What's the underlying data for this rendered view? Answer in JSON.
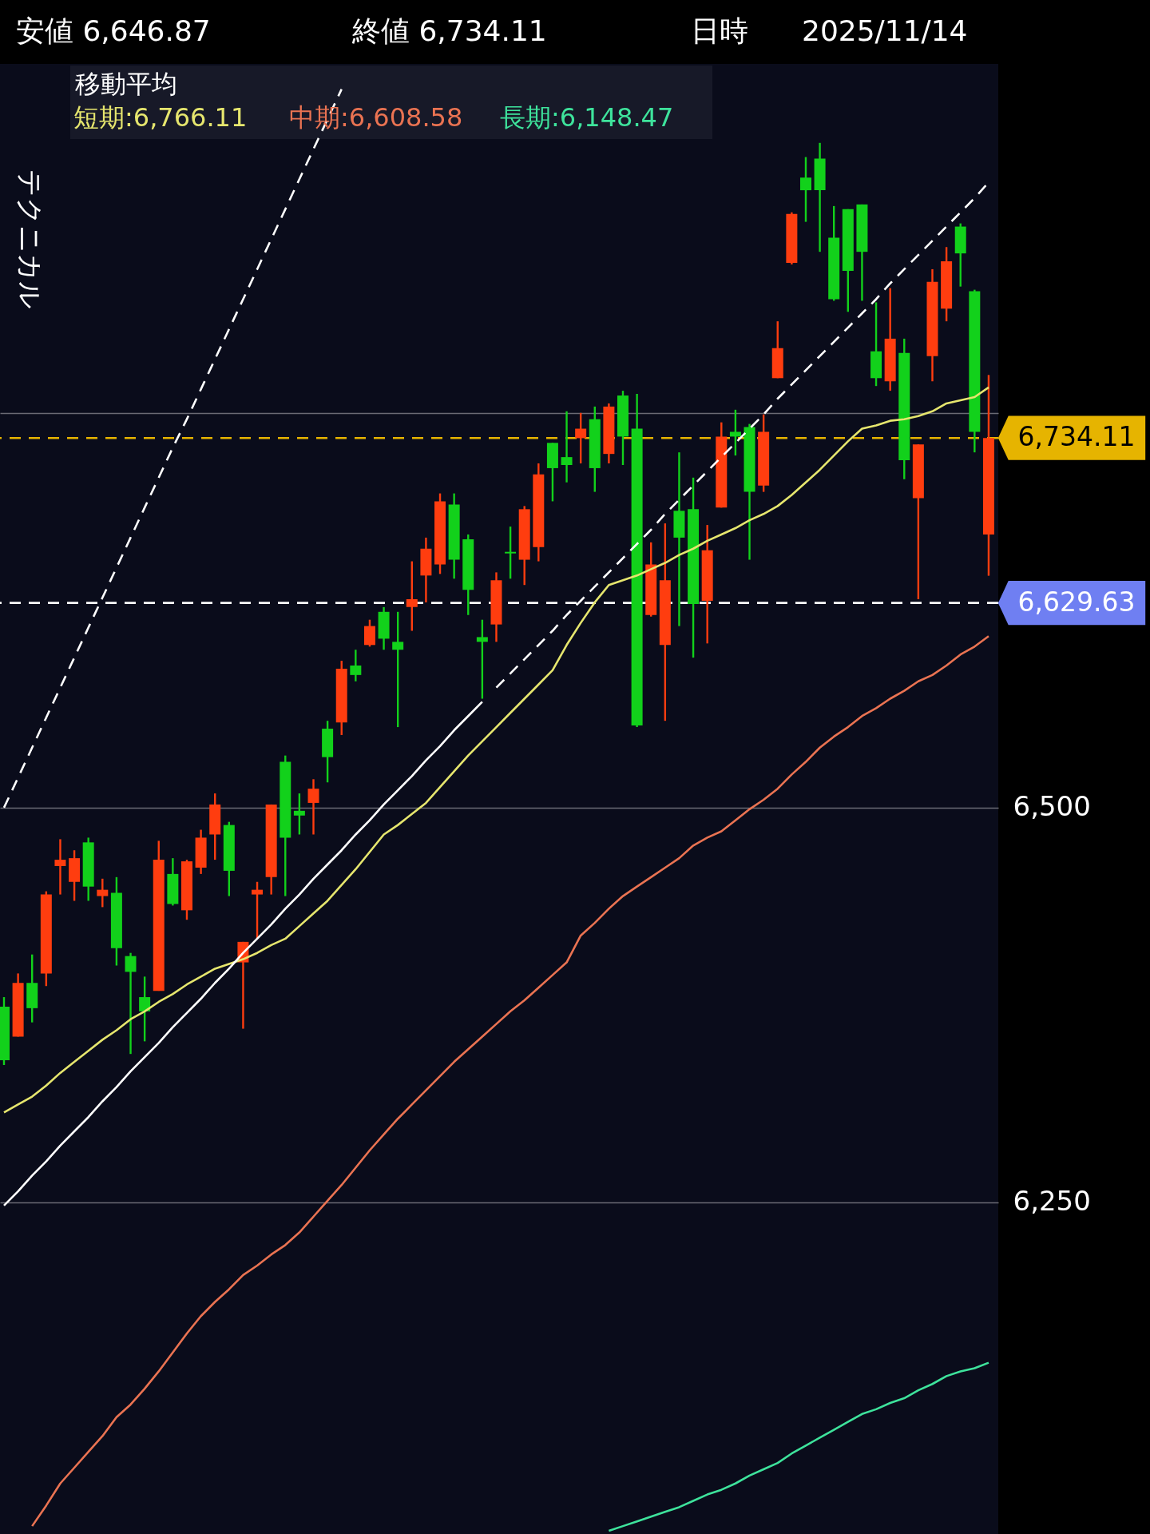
{
  "chart_data": {
    "type": "candlestick",
    "categories": [
      null,
      null,
      null,
      null,
      null,
      null,
      null,
      null,
      null,
      null,
      null,
      null,
      null,
      null,
      null,
      null,
      null,
      null,
      null,
      null,
      null,
      null,
      null,
      null,
      null,
      null,
      null,
      null,
      null,
      null,
      null,
      null,
      null,
      null,
      null,
      null,
      null,
      null,
      null,
      null,
      null,
      null,
      null,
      null,
      null,
      null,
      null,
      null,
      null,
      null,
      null,
      null,
      null,
      null,
      null,
      null,
      null,
      null,
      null,
      null,
      null,
      null,
      null,
      null,
      null,
      null,
      null,
      null,
      null,
      null,
      null
    ],
    "ohlc": [
      [
        6374,
        6380,
        6337,
        6340
      ],
      [
        6355,
        6395,
        6355,
        6389
      ],
      [
        6389,
        6407,
        6364,
        6373
      ],
      [
        6395,
        6447,
        6387,
        6445
      ],
      [
        6463,
        6480,
        6445,
        6467
      ],
      [
        6453,
        6473,
        6441,
        6468
      ],
      [
        6478,
        6481,
        6441,
        6450
      ],
      [
        6444,
        6455,
        6437,
        6448
      ],
      [
        6446,
        6456,
        6400,
        6411
      ],
      [
        6406,
        6408,
        6344,
        6396
      ],
      [
        6380,
        6393,
        6352,
        6371
      ],
      [
        6384,
        6479,
        6384,
        6467
      ],
      [
        6458,
        6468,
        6438,
        6439
      ],
      [
        6435,
        6467,
        6429,
        6466
      ],
      [
        6462,
        6486,
        6458,
        6481
      ],
      [
        6483,
        6509,
        6467,
        6502
      ],
      [
        6489,
        6491,
        6444,
        6460
      ],
      [
        6402,
        6415,
        6360,
        6415
      ],
      [
        6445,
        6453,
        6417,
        6448
      ],
      [
        6456,
        6502,
        6445,
        6502
      ],
      [
        6529,
        6533,
        6444,
        6481
      ],
      [
        6498,
        6509,
        6483,
        6495
      ],
      [
        6503,
        6518,
        6483,
        6512
      ],
      [
        6550,
        6555,
        6516,
        6532
      ],
      [
        6554,
        6593,
        6546,
        6588
      ],
      [
        6590,
        6600,
        6580,
        6584
      ],
      [
        6603,
        6619,
        6602,
        6615
      ],
      [
        6624,
        6627,
        6600,
        6607
      ],
      [
        6605,
        6624,
        6551,
        6600
      ],
      [
        6627,
        6656,
        6612,
        6632
      ],
      [
        6647,
        6671,
        6630,
        6664
      ],
      [
        6654,
        6699,
        6648,
        6694
      ],
      [
        6692,
        6699,
        6645,
        6657
      ],
      [
        6670,
        6673,
        6622,
        6638
      ],
      [
        6608,
        6619,
        6569,
        6605
      ],
      [
        6616,
        6649,
        6605,
        6644
      ],
      [
        6662,
        6678,
        6645,
        6661
      ],
      [
        6657,
        6691,
        6641,
        6689
      ],
      [
        6665,
        6718,
        6656,
        6711
      ],
      [
        6731,
        6731,
        6694,
        6715
      ],
      [
        6722,
        6751,
        6706,
        6717
      ],
      [
        6734,
        6750,
        6718,
        6740
      ],
      [
        6746,
        6754,
        6700,
        6715
      ],
      [
        6724,
        6756,
        6718,
        6754
      ],
      [
        6761,
        6764,
        6717,
        6735
      ],
      [
        6740,
        6762,
        6551,
        6552
      ],
      [
        6622,
        6668,
        6621,
        6654
      ],
      [
        6603,
        6680,
        6555,
        6644
      ],
      [
        6688,
        6725,
        6615,
        6671
      ],
      [
        6689,
        6709,
        6595,
        6629
      ],
      [
        6631,
        6679,
        6604,
        6663
      ],
      [
        6690,
        6744,
        6690,
        6735
      ],
      [
        6738,
        6752,
        6723,
        6735
      ],
      [
        6741,
        6743,
        6657,
        6700
      ],
      [
        6704,
        6749,
        6700,
        6738
      ],
      [
        6772,
        6808,
        6772,
        6791
      ],
      [
        6845,
        6877,
        6844,
        6876
      ],
      [
        6899,
        6912,
        6871,
        6891
      ],
      [
        6911,
        6921,
        6852,
        6891
      ],
      [
        6861,
        6881,
        6821,
        6822
      ],
      [
        6879,
        6879,
        6814,
        6840
      ],
      [
        6882,
        6882,
        6821,
        6852
      ],
      [
        6789,
        6820,
        6767,
        6772
      ],
      [
        6770,
        6829,
        6764,
        6797
      ],
      [
        6788,
        6797,
        6708,
        6720
      ],
      [
        6696,
        6730,
        6632,
        6730
      ],
      [
        6786,
        6841,
        6770,
        6833
      ],
      [
        6816,
        6855,
        6808,
        6846
      ],
      [
        6868,
        6870,
        6830,
        6851
      ],
      [
        6827,
        6828,
        6725,
        6738
      ],
      [
        6673,
        6774,
        6646.87,
        6734.11
      ]
    ],
    "series": [
      {
        "name": "短期:6,766.11",
        "type": "line",
        "color": "#e6e66e",
        "values": [
          6307,
          6312,
          6317,
          6324,
          6332,
          6339,
          6346,
          6353,
          6359,
          6366,
          6371,
          6377,
          6382,
          6388,
          6393,
          6398,
          6401,
          6404,
          6408,
          6413,
          6417,
          6425,
          6433,
          6441,
          6451,
          6461,
          6472,
          6483,
          6489,
          6496,
          6503,
          6513,
          6523,
          6533,
          6542,
          6551,
          6560,
          6569,
          6578,
          6587,
          6603,
          6617,
          6630,
          6641,
          6644,
          6647,
          6651,
          6655,
          6660,
          6664,
          6669,
          6673,
          6677,
          6682,
          6686,
          6691,
          6698,
          6706,
          6714,
          6723,
          6732,
          6740,
          6742,
          6745,
          6746,
          6748,
          6751,
          6756,
          6758,
          6760,
          6766.11
        ]
      },
      {
        "name": "中期:6,608.58",
        "type": "line",
        "color": "#ea7352",
        "values": [
          null,
          null,
          6045,
          6058,
          6072,
          6082,
          6092,
          6102,
          6114,
          6122,
          6132,
          6143,
          6155,
          6167,
          6178,
          6187,
          6195,
          6204,
          6210,
          6217,
          6223,
          6231,
          6241,
          6251,
          6261,
          6272,
          6283,
          6293,
          6303,
          6312,
          6321,
          6330,
          6339,
          6347,
          6355,
          6363,
          6371,
          6378,
          6386,
          6394,
          6402,
          6419,
          6427,
          6436,
          6444,
          6450,
          6456,
          6462,
          6468,
          6476,
          6481,
          6485,
          6492,
          6499,
          6505,
          6512,
          6521,
          6529,
          6538,
          6545,
          6551,
          6558,
          6563,
          6569,
          6574,
          6580,
          6584,
          6590,
          6597,
          6602,
          6608.58
        ]
      },
      {
        "name": "長期:6,148.47",
        "type": "line",
        "color": "#3ee39c",
        "values": [
          null,
          null,
          null,
          null,
          null,
          null,
          null,
          null,
          null,
          null,
          null,
          null,
          null,
          null,
          null,
          null,
          null,
          null,
          null,
          null,
          null,
          null,
          null,
          null,
          null,
          null,
          null,
          null,
          null,
          null,
          null,
          null,
          null,
          null,
          null,
          null,
          null,
          null,
          null,
          null,
          null,
          null,
          null,
          6042,
          6045,
          6048,
          6051,
          6054,
          6057,
          6061,
          6065,
          6068,
          6072,
          6077,
          6081,
          6085,
          6091,
          6096,
          6101,
          6106,
          6111,
          6116,
          6119,
          6123,
          6126,
          6131,
          6135,
          6140,
          6143,
          6145,
          6148.47
        ]
      },
      {
        "type": "line",
        "color": "#ffffff",
        "line_style": "dashed",
        "values": [
          6500,
          6519,
          6538,
          6557,
          6576,
          6595,
          6614,
          6633,
          6652,
          6671,
          6690,
          6709,
          6728,
          6746,
          6765,
          6784,
          6803,
          6822,
          6841,
          6860,
          6879,
          6898,
          6917,
          6936,
          6955,
          null,
          null,
          null,
          null,
          null,
          null,
          null,
          null,
          null,
          null,
          null,
          null,
          null,
          null,
          null,
          null,
          null,
          null,
          null,
          null,
          null,
          null,
          null,
          null,
          null,
          null,
          null,
          null,
          null,
          null,
          null,
          null,
          null,
          null,
          null,
          null,
          null,
          null,
          null,
          null,
          null,
          null,
          null,
          null,
          null,
          null
        ]
      },
      {
        "type": "line",
        "color": "#ffffff",
        "line_style": "solid",
        "values": [
          6248,
          6257,
          6267,
          6276,
          6286,
          6295,
          6304,
          6314,
          6323,
          6333,
          6342,
          6351,
          6361,
          6370,
          6379,
          6389,
          6398,
          6408,
          6417,
          6426,
          6436,
          6445,
          6455,
          6464,
          6473,
          6483,
          6492,
          6502,
          6511,
          6520,
          6530,
          6539,
          6549,
          6558,
          6567,
          null,
          null,
          null,
          null,
          null,
          null,
          null,
          null,
          null,
          null,
          null,
          null,
          null,
          null,
          null,
          null,
          null,
          null,
          null,
          null,
          null,
          null,
          null,
          null,
          null,
          null,
          null,
          null,
          null,
          null,
          null,
          null,
          null,
          null,
          null,
          null
        ]
      },
      {
        "type": "line",
        "color": "#ffffff",
        "line_style": "dashed",
        "values": [
          null,
          null,
          null,
          null,
          null,
          null,
          null,
          null,
          null,
          null,
          null,
          null,
          null,
          null,
          null,
          null,
          null,
          null,
          null,
          null,
          null,
          null,
          null,
          null,
          null,
          null,
          null,
          null,
          null,
          null,
          null,
          null,
          null,
          null,
          null,
          6576,
          6585,
          6594,
          6603,
          6612,
          6622,
          6631,
          6640,
          6649,
          6658,
          6667,
          6676,
          6686,
          6695,
          6704,
          6713,
          6722,
          6731,
          6740,
          6749,
          6759,
          6768,
          6777,
          6786,
          6795,
          6804,
          6813,
          6822,
          6832,
          6841,
          6850,
          6859,
          6868,
          6877,
          6886,
          6896
        ]
      }
    ],
    "legend_title": "移動平均",
    "ref_lines": [
      {
        "axis": "y",
        "value": 6734.11,
        "label": "6,734.11",
        "color": "#e6b400",
        "line_style": "dashed"
      },
      {
        "axis": "y",
        "value": 6629.63,
        "label": "6,629.63",
        "color": "#ffffff",
        "line_style": "dashed"
      }
    ],
    "annotations": [
      "安値 6,646.87",
      "終値 6,734.11",
      "日時",
      "2025/11/14",
      "テクニカル"
    ],
    "ylim": [
      6040,
      6971
    ],
    "yticks": [
      {
        "value": 6250,
        "label": "6,250"
      },
      {
        "value": 6500,
        "label": "6,500"
      },
      {
        "value": 6750,
        "label": null
      }
    ],
    "tick_labels": "y",
    "grid": "y"
  }
}
